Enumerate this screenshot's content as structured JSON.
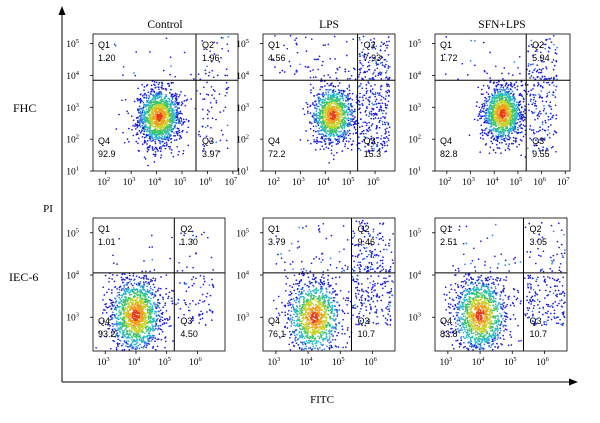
{
  "figure": {
    "x_axis_label": "FITC",
    "y_axis_label": "PI"
  },
  "chart_data": {
    "type": "scatter",
    "subtype": "flow-cytometry-quadrant-dot-plot",
    "xlabel": "FITC",
    "ylabel": "PI",
    "x_scale": "log",
    "y_scale": "log",
    "columns": [
      "Control",
      "LPS",
      "SFN+LPS"
    ],
    "rows": [
      "FHC",
      "IEC-6"
    ],
    "panels": [
      {
        "row": "FHC",
        "column": "Control",
        "x_ticks": [
          "10^2",
          "10^3",
          "10^4",
          "10^5",
          "10^6",
          "10^7"
        ],
        "y_ticks": [
          "10^1",
          "10^2",
          "10^3",
          "10^4",
          "10^5"
        ],
        "xlim_exp": [
          1.5,
          7.2
        ],
        "ylim_exp": [
          1.0,
          5.3
        ],
        "gate": {
          "x_exp": 5.55,
          "y_exp": 3.85
        },
        "cluster": {
          "x_exp": 4.1,
          "y_exp": 2.7
        },
        "quadrants": {
          "Q1": 1.2,
          "Q2": 1.96,
          "Q3": 3.97,
          "Q4": 92.9
        },
        "quadrant_text": {
          "Q1": "1.20",
          "Q2": "1.96",
          "Q3": "3.97",
          "Q4": "92.9"
        }
      },
      {
        "row": "FHC",
        "column": "LPS",
        "x_ticks": [
          "10^2",
          "10^3",
          "10^4",
          "10^5",
          "10^6"
        ],
        "y_ticks": [
          "10^1",
          "10^2",
          "10^3",
          "10^4",
          "10^5"
        ],
        "xlim_exp": [
          1.5,
          6.8
        ],
        "ylim_exp": [
          1.0,
          5.3
        ],
        "gate": {
          "x_exp": 5.3,
          "y_exp": 3.85
        },
        "cluster": {
          "x_exp": 4.3,
          "y_exp": 2.75
        },
        "quadrants": {
          "Q1": 4.56,
          "Q2": 7.93,
          "Q3": 15.3,
          "Q4": 72.2
        },
        "quadrant_text": {
          "Q1": "4.56",
          "Q2": "7.93",
          "Q3": "15.3",
          "Q4": "72.2"
        }
      },
      {
        "row": "FHC",
        "column": "SFN+LPS",
        "x_ticks": [
          "10^2",
          "10^3",
          "10^4",
          "10^5",
          "10^6",
          "10^7"
        ],
        "y_ticks": [
          "10^1",
          "10^2",
          "10^3",
          "10^4",
          "10^5"
        ],
        "xlim_exp": [
          1.5,
          7.2
        ],
        "ylim_exp": [
          1.0,
          5.3
        ],
        "gate": {
          "x_exp": 5.35,
          "y_exp": 3.85
        },
        "cluster": {
          "x_exp": 4.35,
          "y_exp": 2.8
        },
        "quadrants": {
          "Q1": 1.72,
          "Q2": 5.94,
          "Q3": 9.55,
          "Q4": 82.8
        },
        "quadrant_text": {
          "Q1": "1.72",
          "Q2": "5.94",
          "Q3": "9.55",
          "Q4": "82.8"
        }
      },
      {
        "row": "IEC-6",
        "column": "Control",
        "x_ticks": [
          "10^3",
          "10^4",
          "10^5",
          "10^6"
        ],
        "y_ticks": [
          "10^3",
          "10^4",
          "10^5"
        ],
        "xlim_exp": [
          2.6,
          6.9
        ],
        "ylim_exp": [
          2.2,
          5.35
        ],
        "gate": {
          "x_exp": 5.25,
          "y_exp": 4.05
        },
        "cluster": {
          "x_exp": 4.0,
          "y_exp": 3.05
        },
        "quadrants": {
          "Q1": 1.01,
          "Q2": 1.3,
          "Q3": 4.5,
          "Q4": 93.2
        },
        "quadrant_text": {
          "Q1": "1.01",
          "Q2": "1.30",
          "Q3": "4.50",
          "Q4": "93.2"
        }
      },
      {
        "row": "IEC-6",
        "column": "LPS",
        "x_ticks": [
          "10^3",
          "10^4",
          "10^5",
          "10^6"
        ],
        "y_ticks": [
          "10^3",
          "10^4",
          "10^5"
        ],
        "xlim_exp": [
          2.6,
          6.7
        ],
        "ylim_exp": [
          2.2,
          5.35
        ],
        "gate": {
          "x_exp": 5.35,
          "y_exp": 4.05
        },
        "cluster": {
          "x_exp": 4.2,
          "y_exp": 3.0
        },
        "quadrants": {
          "Q1": 3.79,
          "Q2": 9.46,
          "Q3": 10.7,
          "Q4": 76.1
        },
        "quadrant_text": {
          "Q1": "3.79",
          "Q2": "9.46",
          "Q3": "10.7",
          "Q4": "76.1"
        }
      },
      {
        "row": "IEC-6",
        "column": "SFN+LPS",
        "x_ticks": [
          "10^3",
          "10^4",
          "10^5",
          "10^6"
        ],
        "y_ticks": [
          "10^3",
          "10^4",
          "10^5"
        ],
        "xlim_exp": [
          2.6,
          6.7
        ],
        "ylim_exp": [
          2.2,
          5.35
        ],
        "gate": {
          "x_exp": 5.35,
          "y_exp": 4.05
        },
        "cluster": {
          "x_exp": 4.0,
          "y_exp": 3.05
        },
        "quadrants": {
          "Q1": 2.51,
          "Q2": 3.05,
          "Q3": 10.7,
          "Q4": 83.8
        },
        "quadrant_text": {
          "Q1": "2.51",
          "Q2": "3.05",
          "Q3": "10.7",
          "Q4": "83.8"
        }
      }
    ],
    "density_colors": [
      "#1a1ae0",
      "#2f7fe8",
      "#27b8c8",
      "#3cc46a",
      "#c8d22c",
      "#f0a020",
      "#e83a1c"
    ],
    "grid": false,
    "legend": "none"
  }
}
